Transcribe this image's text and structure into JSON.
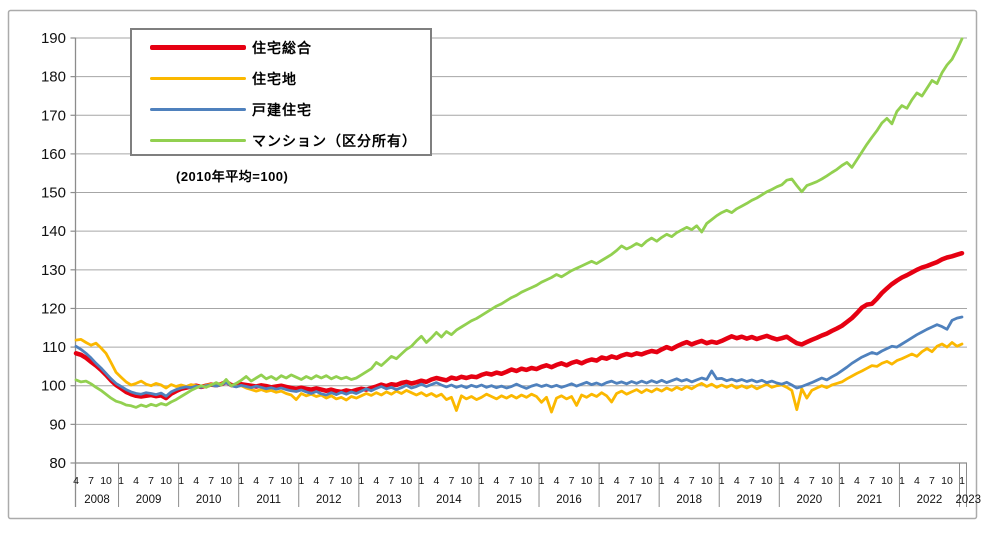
{
  "chart_data": {
    "type": "line",
    "title": "",
    "note": "(2010年平均=100)",
    "x_start": "2008-04",
    "x_end": "2023-01",
    "x_frequency": "monthly",
    "ylim": [
      80,
      190
    ],
    "y_ticks": [
      80,
      90,
      100,
      110,
      120,
      130,
      140,
      150,
      160,
      170,
      180,
      190
    ],
    "grid": true,
    "legend_position": "top-left",
    "x_years": [
      "2008",
      "2009",
      "2010",
      "2011",
      "2012",
      "2013",
      "2014",
      "2015",
      "2016",
      "2017",
      "2018",
      "2019",
      "2020",
      "2021",
      "2022",
      "2023"
    ],
    "x_month_tick_labels": [
      "4",
      "7",
      "10",
      "1"
    ],
    "colors": {
      "grid": "#a6a6a6",
      "axis": "#8c8c8c",
      "border": "#ababab",
      "text": "#111111"
    },
    "series": [
      {
        "name": "住宅総合",
        "key": "jutaku-sogo",
        "color": "#e60012",
        "width": 4.5,
        "values": [
          108.4,
          108.0,
          107.2,
          106.2,
          105.2,
          104.1,
          102.8,
          101.4,
          100.2,
          99.3,
          98.4,
          97.8,
          97.4,
          97.2,
          97.4,
          97.6,
          97.3,
          97.5,
          96.8,
          97.9,
          98.6,
          99.2,
          99.5,
          99.8,
          100.0,
          99.7,
          100.0,
          100.3,
          100.1,
          100.4,
          101.0,
          100.2,
          100.0,
          100.4,
          100.2,
          100.0,
          99.8,
          100.1,
          99.9,
          99.6,
          99.8,
          100.0,
          99.7,
          99.4,
          99.2,
          99.5,
          99.2,
          99.0,
          99.3,
          99.0,
          98.7,
          99.0,
          98.6,
          98.4,
          98.8,
          98.5,
          98.9,
          99.2,
          99.0,
          99.4,
          99.8,
          100.3,
          99.9,
          100.4,
          100.2,
          100.7,
          101.0,
          100.6,
          100.9,
          101.3,
          101.0,
          101.6,
          102.0,
          101.7,
          101.4,
          102.1,
          101.8,
          102.3,
          102.0,
          102.4,
          102.2,
          102.8,
          103.2,
          102.9,
          103.4,
          103.1,
          103.6,
          104.2,
          103.8,
          104.4,
          104.1,
          104.6,
          104.3,
          104.9,
          105.3,
          104.8,
          105.4,
          105.8,
          105.3,
          105.9,
          106.3,
          105.8,
          106.4,
          106.8,
          106.5,
          107.3,
          107.0,
          107.6,
          107.2,
          107.8,
          108.2,
          107.9,
          108.4,
          108.1,
          108.6,
          109.0,
          108.7,
          109.4,
          110.0,
          109.5,
          110.2,
          110.8,
          111.3,
          110.7,
          111.2,
          111.6,
          111.0,
          111.4,
          111.1,
          111.6,
          112.2,
          112.8,
          112.3,
          112.7,
          112.2,
          112.6,
          112.1,
          112.5,
          112.9,
          112.4,
          112.0,
          112.3,
          112.7,
          111.8,
          111.0,
          110.7,
          111.3,
          111.9,
          112.4,
          113.0,
          113.5,
          114.2,
          114.8,
          115.5,
          116.5,
          117.5,
          118.8,
          120.2,
          121.0,
          121.2,
          122.5,
          124.0,
          125.2,
          126.3,
          127.2,
          128.0,
          128.6,
          129.3,
          130.0,
          130.6,
          131.0,
          131.5,
          132.0,
          132.7,
          133.2,
          133.5,
          133.9,
          134.3
        ]
      },
      {
        "name": "住宅地",
        "key": "jutakuchi",
        "color": "#fbb800",
        "width": 2.8,
        "values": [
          111.8,
          112.0,
          111.2,
          110.5,
          111.0,
          109.8,
          108.4,
          106.0,
          103.5,
          102.2,
          101.0,
          100.2,
          100.6,
          101.2,
          100.4,
          100.0,
          100.6,
          100.2,
          99.4,
          100.3,
          99.8,
          100.2,
          99.8,
          100.3,
          100.0,
          99.7,
          100.1,
          100.4,
          100.0,
          100.5,
          100.9,
          100.1,
          99.8,
          100.0,
          99.4,
          99.0,
          98.6,
          99.0,
          98.5,
          98.8,
          98.3,
          98.6,
          98.0,
          97.6,
          96.4,
          98.0,
          97.4,
          97.8,
          97.2,
          97.6,
          96.8,
          97.4,
          96.6,
          97.0,
          96.3,
          97.2,
          96.8,
          97.4,
          98.0,
          97.5,
          98.2,
          97.6,
          98.4,
          97.8,
          98.6,
          98.0,
          98.8,
          98.2,
          97.6,
          98.2,
          97.4,
          98.0,
          97.2,
          97.8,
          96.4,
          97.0,
          93.6,
          97.4,
          96.6,
          97.2,
          96.4,
          97.0,
          97.8,
          97.2,
          96.6,
          97.4,
          96.8,
          97.5,
          96.8,
          97.6,
          97.0,
          97.8,
          97.2,
          95.7,
          97.0,
          93.2,
          96.8,
          97.4,
          96.6,
          97.2,
          94.9,
          97.6,
          97.0,
          97.8,
          97.2,
          98.2,
          97.4,
          95.8,
          98.0,
          98.6,
          97.8,
          98.4,
          99.0,
          98.2,
          99.0,
          98.4,
          99.2,
          98.6,
          99.4,
          98.8,
          99.6,
          99.0,
          99.8,
          99.2,
          100.0,
          100.6,
          99.8,
          100.4,
          99.6,
          100.2,
          99.6,
          100.2,
          99.4,
          100.0,
          99.4,
          100.0,
          99.2,
          99.8,
          100.4,
          99.6,
          100.0,
          100.2,
          99.6,
          98.8,
          93.8,
          99.2,
          96.8,
          98.8,
          99.4,
          100.0,
          99.5,
          100.2,
          100.6,
          101.0,
          101.8,
          102.5,
          103.2,
          103.8,
          104.5,
          105.2,
          105.0,
          105.8,
          106.3,
          105.6,
          106.5,
          107.0,
          107.6,
          108.2,
          107.6,
          108.8,
          109.6,
          108.8,
          110.2,
          110.8,
          110.0,
          111.2,
          110.2,
          110.8
        ]
      },
      {
        "name": "戸建住宅",
        "key": "kodate-jutaku",
        "color": "#4f81bd",
        "width": 2.8,
        "values": [
          110.2,
          109.4,
          108.4,
          107.2,
          105.8,
          104.6,
          103.2,
          101.8,
          100.6,
          99.8,
          99.0,
          98.4,
          98.0,
          97.8,
          98.2,
          98.0,
          97.7,
          98.1,
          97.3,
          98.4,
          99.0,
          99.4,
          99.7,
          99.5,
          99.9,
          99.6,
          100.0,
          100.2,
          99.9,
          100.3,
          100.8,
          100.0,
          99.7,
          100.1,
          99.8,
          99.5,
          99.9,
          99.6,
          99.2,
          99.5,
          99.1,
          99.4,
          99.0,
          98.7,
          98.5,
          98.9,
          98.4,
          98.0,
          98.5,
          97.9,
          97.6,
          98.2,
          97.7,
          98.3,
          97.8,
          98.4,
          98.0,
          98.6,
          99.2,
          98.7,
          99.3,
          99.8,
          99.2,
          99.6,
          99.0,
          99.5,
          100.1,
          99.4,
          99.8,
          100.4,
          99.8,
          100.3,
          100.8,
          100.2,
          99.7,
          100.2,
          99.6,
          100.0,
          99.5,
          100.1,
          99.7,
          100.2,
          99.6,
          100.0,
          99.5,
          99.9,
          99.4,
          99.8,
          100.4,
          99.8,
          99.3,
          99.9,
          100.3,
          99.8,
          100.2,
          99.7,
          100.1,
          99.6,
          100.0,
          100.5,
          99.9,
          100.4,
          100.9,
          100.3,
          100.7,
          100.2,
          100.8,
          101.2,
          100.6,
          101.0,
          100.5,
          101.1,
          100.6,
          101.2,
          100.7,
          101.3,
          100.8,
          101.4,
          100.8,
          101.3,
          101.8,
          101.2,
          101.6,
          101.0,
          101.5,
          102.0,
          101.6,
          103.8,
          101.8,
          101.9,
          101.3,
          101.7,
          101.2,
          101.6,
          101.1,
          101.5,
          101.0,
          101.4,
          100.8,
          101.2,
          100.7,
          100.4,
          100.9,
          100.2,
          99.4,
          99.8,
          100.3,
          100.8,
          101.4,
          102.0,
          101.5,
          102.3,
          103.0,
          103.9,
          104.8,
          105.8,
          106.6,
          107.4,
          108.0,
          108.6,
          108.2,
          109.0,
          109.6,
          110.2,
          110.0,
          110.8,
          111.6,
          112.4,
          113.2,
          113.9,
          114.6,
          115.2,
          115.8,
          115.3,
          114.6,
          116.9,
          117.5,
          117.8
        ]
      },
      {
        "name": "マンション（区分所有）",
        "key": "mansion",
        "color": "#92d050",
        "width": 2.8,
        "values": [
          101.5,
          101.0,
          101.2,
          100.5,
          99.6,
          98.8,
          97.8,
          96.8,
          96.0,
          95.6,
          95.0,
          94.8,
          94.4,
          95.0,
          94.6,
          95.2,
          94.8,
          95.4,
          95.0,
          95.8,
          96.4,
          97.2,
          98.0,
          98.8,
          99.4,
          100.0,
          99.6,
          100.2,
          100.8,
          100.2,
          101.6,
          100.0,
          100.6,
          101.4,
          102.4,
          101.2,
          102.0,
          102.8,
          101.8,
          102.4,
          101.6,
          102.6,
          102.0,
          102.8,
          102.2,
          101.6,
          102.4,
          101.8,
          102.6,
          102.0,
          102.6,
          101.8,
          102.4,
          101.8,
          102.2,
          101.6,
          102.0,
          102.8,
          103.6,
          104.4,
          106.0,
          105.2,
          106.4,
          107.6,
          107.0,
          108.2,
          109.4,
          110.2,
          111.6,
          112.8,
          111.2,
          112.4,
          113.8,
          112.6,
          114.0,
          113.2,
          114.4,
          115.2,
          116.0,
          116.8,
          117.4,
          118.2,
          119.0,
          119.8,
          120.6,
          121.2,
          122.0,
          122.8,
          123.4,
          124.2,
          124.8,
          125.4,
          126.0,
          126.8,
          127.4,
          128.0,
          128.8,
          128.2,
          129.0,
          129.8,
          130.4,
          131.0,
          131.6,
          132.2,
          131.6,
          132.4,
          133.2,
          134.0,
          135.0,
          136.2,
          135.4,
          136.0,
          136.8,
          136.2,
          137.4,
          138.2,
          137.4,
          138.4,
          139.2,
          138.6,
          139.6,
          140.3,
          141.0,
          140.4,
          141.4,
          139.8,
          142.0,
          143.0,
          144.0,
          144.8,
          145.4,
          144.8,
          145.8,
          146.5,
          147.2,
          148.0,
          148.6,
          149.4,
          150.2,
          150.8,
          151.5,
          152.0,
          153.2,
          153.5,
          151.8,
          150.2,
          151.8,
          152.3,
          152.8,
          153.5,
          154.3,
          155.2,
          156.0,
          157.0,
          157.8,
          156.5,
          158.5,
          160.5,
          162.5,
          164.3,
          166.0,
          168.0,
          169.2,
          167.8,
          171.0,
          172.5,
          171.8,
          174.0,
          175.8,
          175.0,
          177.0,
          179.0,
          178.2,
          181.0,
          183.0,
          184.5,
          187.0,
          189.8
        ]
      }
    ]
  }
}
